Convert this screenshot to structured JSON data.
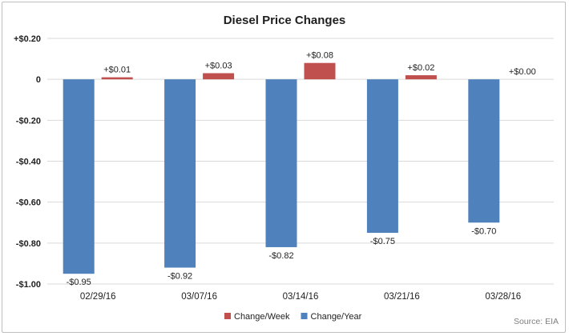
{
  "chart_data": {
    "type": "bar",
    "title": "Diesel Price Changes",
    "categories": [
      "02/29/16",
      "03/07/16",
      "03/14/16",
      "03/21/16",
      "03/28/16"
    ],
    "series": [
      {
        "name": "Change/Week",
        "color": "#c0504d",
        "values": [
          0.01,
          0.03,
          0.08,
          0.02,
          0.0
        ],
        "labels": [
          "+$0.01",
          "+$0.03",
          "+$0.08",
          "+$0.02",
          "+$0.00"
        ]
      },
      {
        "name": "Change/Year",
        "color": "#4f81bd",
        "values": [
          -0.95,
          -0.92,
          -0.82,
          -0.75,
          -0.7
        ],
        "labels": [
          "-$0.95",
          "-$0.92",
          "-$0.82",
          "-$0.75",
          "-$0.70"
        ]
      }
    ],
    "bar_order": [
      1,
      0
    ],
    "legend_order": [
      0,
      1
    ],
    "ylim": [
      -1.0,
      0.2
    ],
    "yticks": [
      0.2,
      0,
      -0.2,
      -0.4,
      -0.6,
      -0.8,
      -1.0
    ],
    "ytick_labels": [
      "+$0.20",
      "0",
      "-$0.20",
      "-$0.40",
      "-$0.60",
      "-$0.80",
      "-$1.00"
    ],
    "grid": true,
    "legend_position": "bottom",
    "source": "Source: EIA"
  }
}
